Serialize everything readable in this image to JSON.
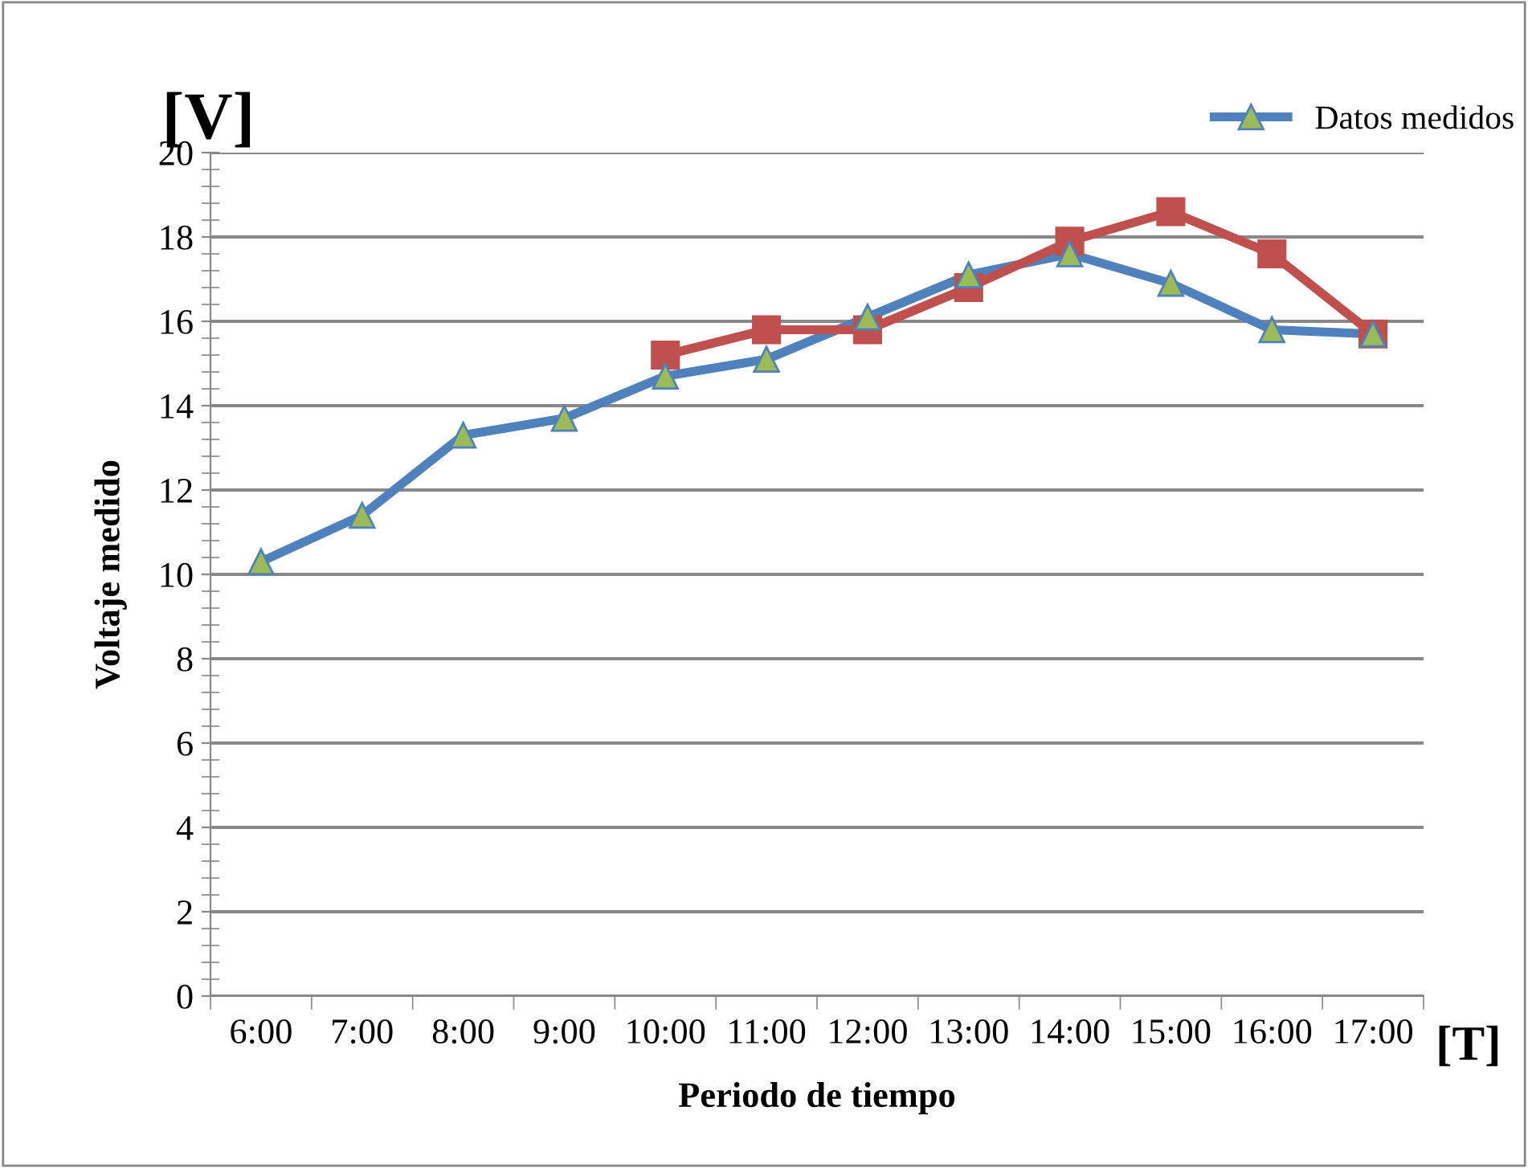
{
  "chart_data": {
    "type": "line",
    "xlabel": "Periodo de tiempo",
    "ylabel": "Voltaje medido",
    "categories": [
      "6:00",
      "7:00",
      "8:00",
      "9:00",
      "10:00",
      "11:00",
      "12:00",
      "13:00",
      "14:00",
      "15:00",
      "16:00",
      "17:00"
    ],
    "series": [
      {
        "name": "Datos medidos",
        "color": "#4f81bd",
        "marker": "triangle",
        "values": [
          10.3,
          11.4,
          13.3,
          13.7,
          14.7,
          15.1,
          16.1,
          17.1,
          17.6,
          16.9,
          15.8,
          15.7
        ]
      },
      {
        "color": "#c0504d",
        "marker": "square",
        "values": [
          null,
          null,
          null,
          null,
          15.2,
          15.8,
          15.8,
          16.8,
          17.9,
          18.6,
          17.6,
          15.7
        ]
      }
    ],
    "ylim": [
      0,
      20
    ],
    "yticks": [
      0,
      2,
      4,
      6,
      8,
      10,
      12,
      14,
      16,
      18,
      20
    ],
    "grid": "y",
    "legend": "top right",
    "annotations": [
      "[V]",
      "[T]"
    ]
  }
}
